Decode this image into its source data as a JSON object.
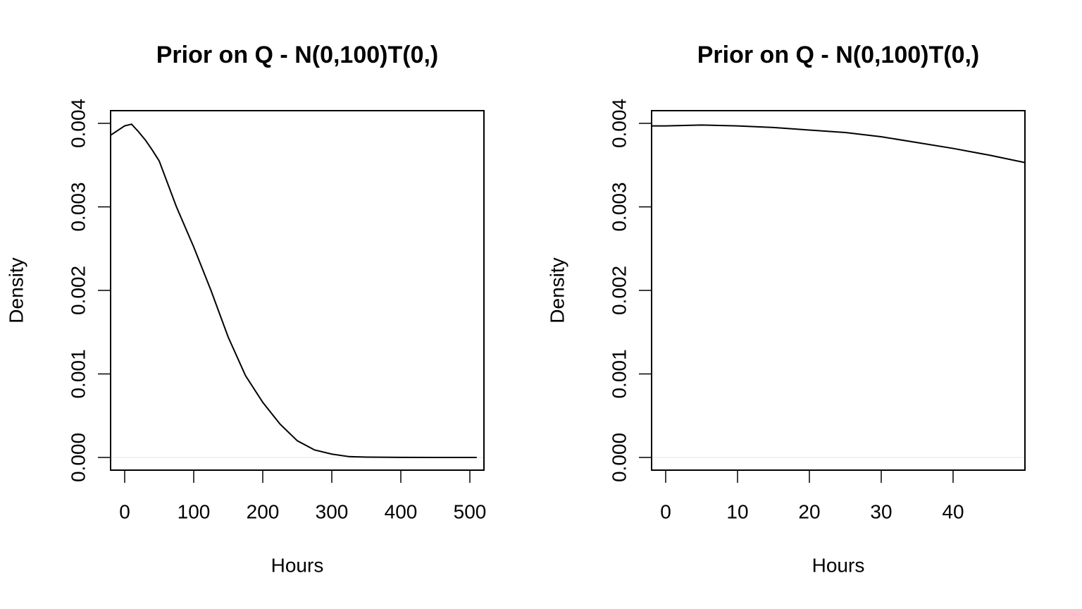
{
  "chart_data": [
    {
      "type": "line",
      "title": "Prior on Q - N(0,100)T(0,)",
      "x_label": "Hours",
      "y_label": "Density",
      "x": [
        -20,
        0,
        10,
        20,
        30,
        40,
        50,
        75,
        100,
        125,
        150,
        175,
        200,
        225,
        250,
        275,
        300,
        325,
        350,
        400,
        450,
        510
      ],
      "series": [
        {
          "color": "#000000",
          "values": [
            0.00386,
            0.00397,
            0.00399,
            0.0039,
            0.0038,
            0.00368,
            0.00355,
            0.003,
            0.00252,
            0.002,
            0.00144,
            0.00098,
            0.00066,
            0.0004,
            0.0002,
            9e-05,
            4e-05,
            1e-05,
            4e-06,
            1e-06,
            0,
            0
          ]
        }
      ],
      "xlim": [
        -20.4,
        520.4
      ],
      "ylim": [
        -0.000152,
        0.004152
      ],
      "xticks": [
        0,
        100,
        200,
        300,
        400,
        500
      ],
      "yticks": [
        {
          "value": 0,
          "label": "0.000"
        },
        {
          "value": 0.001,
          "label": "0.001"
        },
        {
          "value": 0.002,
          "label": "0.002"
        },
        {
          "value": 0.003,
          "label": "0.003"
        },
        {
          "value": 0.004,
          "label": "0.004"
        }
      ],
      "zero_line": true
    },
    {
      "type": "line",
      "title": "Prior on Q - N(0,100)T(0,)",
      "x_label": "Hours",
      "y_label": "Density",
      "x": [
        -2,
        0,
        5,
        10,
        15,
        20,
        25,
        30,
        35,
        40,
        45,
        50
      ],
      "series": [
        {
          "color": "#000000",
          "values": [
            0.00397,
            0.00397,
            0.00398,
            0.00397,
            0.00395,
            0.00392,
            0.00389,
            0.00384,
            0.00377,
            0.0037,
            0.00362,
            0.00353
          ]
        }
      ],
      "xlim": [
        -1.96,
        50
      ],
      "ylim": [
        -0.000152,
        0.004152
      ],
      "xticks": [
        0,
        10,
        20,
        30,
        40
      ],
      "yticks": [
        {
          "value": 0,
          "label": "0.000"
        },
        {
          "value": 0.001,
          "label": "0.001"
        },
        {
          "value": 0.002,
          "label": "0.002"
        },
        {
          "value": 0.003,
          "label": "0.003"
        },
        {
          "value": 0.004,
          "label": "0.004"
        }
      ],
      "zero_line": true
    }
  ]
}
